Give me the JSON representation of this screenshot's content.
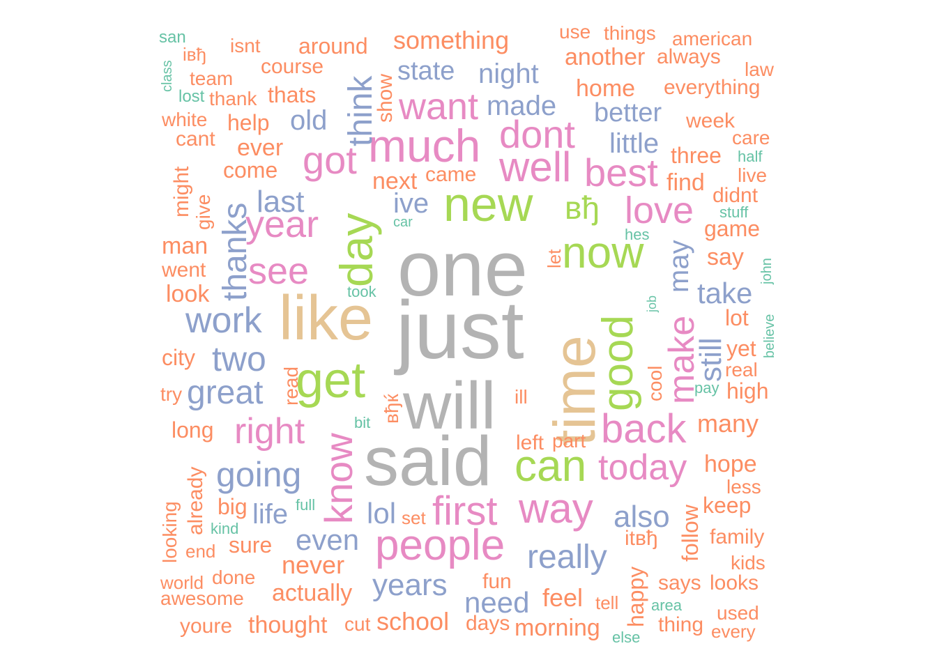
{
  "palette": {
    "gray": "#B3B3B3",
    "tan": "#E5C494",
    "green": "#A6D854",
    "pink": "#E78AC3",
    "blue": "#8DA0CB",
    "orange": "#FC8D62",
    "teal": "#66C2A5"
  },
  "words": [
    {
      "text": "one",
      "color": "gray"
    },
    {
      "text": "just",
      "color": "gray"
    },
    {
      "text": "will",
      "color": "gray"
    },
    {
      "text": "said",
      "color": "gray"
    },
    {
      "text": "like",
      "color": "tan"
    },
    {
      "text": "time",
      "color": "tan"
    },
    {
      "text": "new",
      "color": "green"
    },
    {
      "text": "now",
      "color": "green"
    },
    {
      "text": "get",
      "color": "green"
    },
    {
      "text": "day",
      "color": "green"
    },
    {
      "text": "good",
      "color": "green"
    },
    {
      "text": "can",
      "color": "green"
    },
    {
      "text": "вђ",
      "color": "green"
    },
    {
      "text": "much",
      "color": "pink"
    },
    {
      "text": "well",
      "color": "pink"
    },
    {
      "text": "dont",
      "color": "pink"
    },
    {
      "text": "want",
      "color": "pink"
    },
    {
      "text": "year",
      "color": "pink"
    },
    {
      "text": "see",
      "color": "pink"
    },
    {
      "text": "got",
      "color": "pink"
    },
    {
      "text": "best",
      "color": "pink"
    },
    {
      "text": "love",
      "color": "pink"
    },
    {
      "text": "make",
      "color": "pink"
    },
    {
      "text": "back",
      "color": "pink"
    },
    {
      "text": "right",
      "color": "pink"
    },
    {
      "text": "know",
      "color": "pink"
    },
    {
      "text": "first",
      "color": "pink"
    },
    {
      "text": "way",
      "color": "pink"
    },
    {
      "text": "today",
      "color": "pink"
    },
    {
      "text": "people",
      "color": "pink"
    },
    {
      "text": "think",
      "color": "blue"
    },
    {
      "text": "state",
      "color": "blue"
    },
    {
      "text": "night",
      "color": "blue"
    },
    {
      "text": "made",
      "color": "blue"
    },
    {
      "text": "better",
      "color": "blue"
    },
    {
      "text": "little",
      "color": "blue"
    },
    {
      "text": "old",
      "color": "blue"
    },
    {
      "text": "last",
      "color": "blue"
    },
    {
      "text": "ive",
      "color": "blue"
    },
    {
      "text": "thanks",
      "color": "blue"
    },
    {
      "text": "work",
      "color": "blue"
    },
    {
      "text": "two",
      "color": "blue"
    },
    {
      "text": "great",
      "color": "blue"
    },
    {
      "text": "going",
      "color": "blue"
    },
    {
      "text": "life",
      "color": "blue"
    },
    {
      "text": "lol",
      "color": "blue"
    },
    {
      "text": "even",
      "color": "blue"
    },
    {
      "text": "years",
      "color": "blue"
    },
    {
      "text": "need",
      "color": "blue"
    },
    {
      "text": "really",
      "color": "blue"
    },
    {
      "text": "also",
      "color": "blue"
    },
    {
      "text": "take",
      "color": "blue"
    },
    {
      "text": "still",
      "color": "blue"
    },
    {
      "text": "may",
      "color": "blue"
    },
    {
      "text": "show",
      "color": "orange"
    },
    {
      "text": "isnt",
      "color": "orange"
    },
    {
      "text": "around",
      "color": "orange"
    },
    {
      "text": "something",
      "color": "orange"
    },
    {
      "text": "use",
      "color": "orange"
    },
    {
      "text": "things",
      "color": "orange"
    },
    {
      "text": "american",
      "color": "orange"
    },
    {
      "text": "another",
      "color": "orange"
    },
    {
      "text": "always",
      "color": "orange"
    },
    {
      "text": "law",
      "color": "orange"
    },
    {
      "text": "iвђ",
      "color": "orange"
    },
    {
      "text": "team",
      "color": "orange"
    },
    {
      "text": "course",
      "color": "orange"
    },
    {
      "text": "thank",
      "color": "orange"
    },
    {
      "text": "thats",
      "color": "orange"
    },
    {
      "text": "home",
      "color": "orange"
    },
    {
      "text": "everything",
      "color": "orange"
    },
    {
      "text": "white",
      "color": "orange"
    },
    {
      "text": "help",
      "color": "orange"
    },
    {
      "text": "cant",
      "color": "orange"
    },
    {
      "text": "ever",
      "color": "orange"
    },
    {
      "text": "come",
      "color": "orange"
    },
    {
      "text": "week",
      "color": "orange"
    },
    {
      "text": "care",
      "color": "orange"
    },
    {
      "text": "three",
      "color": "orange"
    },
    {
      "text": "live",
      "color": "orange"
    },
    {
      "text": "find",
      "color": "orange"
    },
    {
      "text": "didnt",
      "color": "orange"
    },
    {
      "text": "next",
      "color": "orange"
    },
    {
      "text": "came",
      "color": "orange"
    },
    {
      "text": "might",
      "color": "orange"
    },
    {
      "text": "give",
      "color": "orange"
    },
    {
      "text": "game",
      "color": "orange"
    },
    {
      "text": "man",
      "color": "orange"
    },
    {
      "text": "went",
      "color": "orange"
    },
    {
      "text": "say",
      "color": "orange"
    },
    {
      "text": "let",
      "color": "orange"
    },
    {
      "text": "look",
      "color": "orange"
    },
    {
      "text": "lot",
      "color": "orange"
    },
    {
      "text": "city",
      "color": "orange"
    },
    {
      "text": "yet",
      "color": "orange"
    },
    {
      "text": "real",
      "color": "orange"
    },
    {
      "text": "read",
      "color": "orange"
    },
    {
      "text": "try",
      "color": "orange"
    },
    {
      "text": "вђќ",
      "color": "orange"
    },
    {
      "text": "ill",
      "color": "orange"
    },
    {
      "text": "cool",
      "color": "orange"
    },
    {
      "text": "high",
      "color": "orange"
    },
    {
      "text": "long",
      "color": "orange"
    },
    {
      "text": "many",
      "color": "orange"
    },
    {
      "text": "already",
      "color": "orange"
    },
    {
      "text": "left",
      "color": "orange"
    },
    {
      "text": "part",
      "color": "orange"
    },
    {
      "text": "hope",
      "color": "orange"
    },
    {
      "text": "less",
      "color": "orange"
    },
    {
      "text": "big",
      "color": "orange"
    },
    {
      "text": "looking",
      "color": "orange"
    },
    {
      "text": "set",
      "color": "orange"
    },
    {
      "text": "keep",
      "color": "orange"
    },
    {
      "text": "follow",
      "color": "orange"
    },
    {
      "text": "itвђ",
      "color": "orange"
    },
    {
      "text": "family",
      "color": "orange"
    },
    {
      "text": "end",
      "color": "orange"
    },
    {
      "text": "sure",
      "color": "orange"
    },
    {
      "text": "never",
      "color": "orange"
    },
    {
      "text": "kids",
      "color": "orange"
    },
    {
      "text": "world",
      "color": "orange"
    },
    {
      "text": "done",
      "color": "orange"
    },
    {
      "text": "fun",
      "color": "orange"
    },
    {
      "text": "happy",
      "color": "orange"
    },
    {
      "text": "says",
      "color": "orange"
    },
    {
      "text": "looks",
      "color": "orange"
    },
    {
      "text": "awesome",
      "color": "orange"
    },
    {
      "text": "actually",
      "color": "orange"
    },
    {
      "text": "feel",
      "color": "orange"
    },
    {
      "text": "tell",
      "color": "orange"
    },
    {
      "text": "used",
      "color": "orange"
    },
    {
      "text": "youre",
      "color": "orange"
    },
    {
      "text": "thought",
      "color": "orange"
    },
    {
      "text": "cut",
      "color": "orange"
    },
    {
      "text": "school",
      "color": "orange"
    },
    {
      "text": "days",
      "color": "orange"
    },
    {
      "text": "morning",
      "color": "orange"
    },
    {
      "text": "thing",
      "color": "orange"
    },
    {
      "text": "every",
      "color": "orange"
    },
    {
      "text": "san",
      "color": "teal"
    },
    {
      "text": "class",
      "color": "teal"
    },
    {
      "text": "lost",
      "color": "teal"
    },
    {
      "text": "half",
      "color": "teal"
    },
    {
      "text": "stuff",
      "color": "teal"
    },
    {
      "text": "car",
      "color": "teal"
    },
    {
      "text": "hes",
      "color": "teal"
    },
    {
      "text": "john",
      "color": "teal"
    },
    {
      "text": "took",
      "color": "teal"
    },
    {
      "text": "job",
      "color": "teal"
    },
    {
      "text": "believe",
      "color": "teal"
    },
    {
      "text": "bit",
      "color": "teal"
    },
    {
      "text": "pay",
      "color": "teal"
    },
    {
      "text": "full",
      "color": "teal"
    },
    {
      "text": "kind",
      "color": "teal"
    },
    {
      "text": "area",
      "color": "teal"
    },
    {
      "text": "else",
      "color": "teal"
    }
  ]
}
